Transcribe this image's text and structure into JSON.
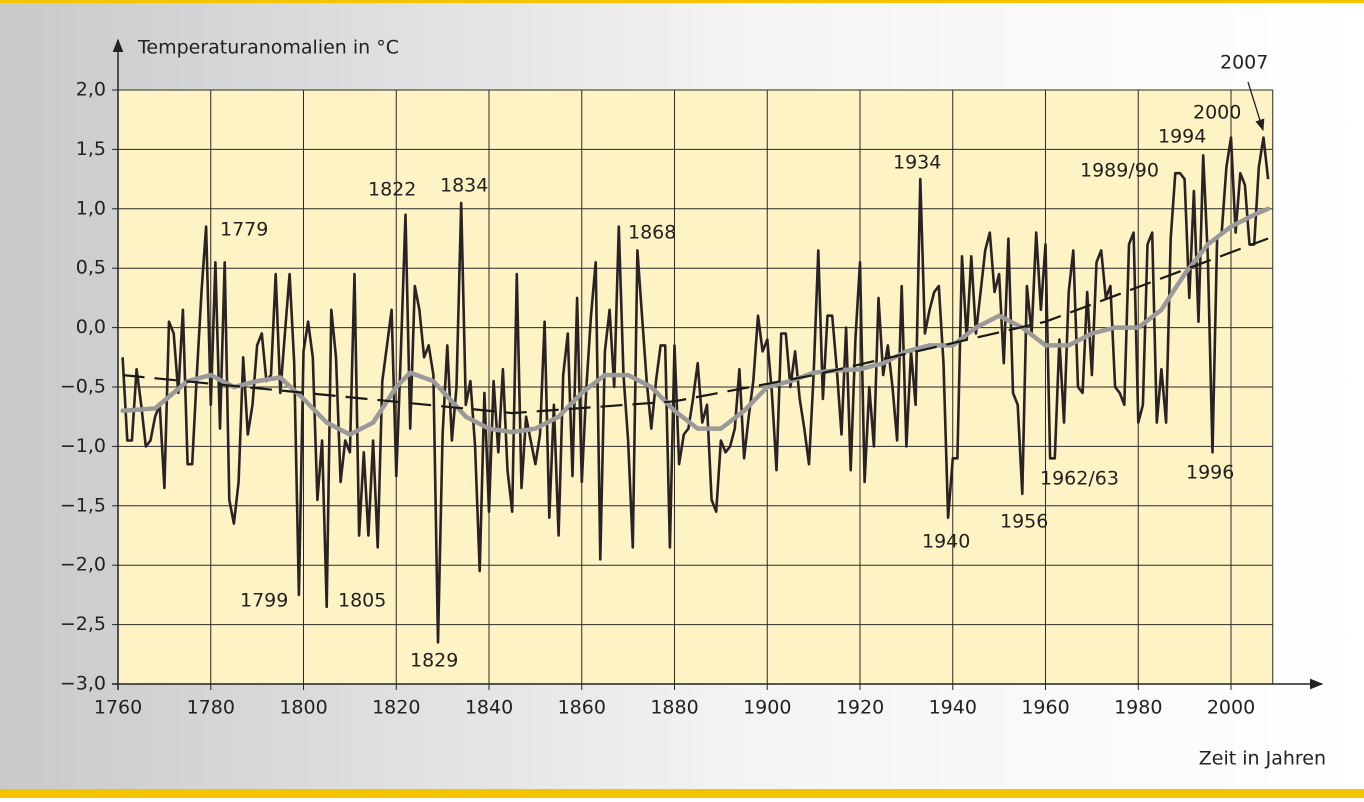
{
  "chart_data": {
    "type": "line",
    "ylabel": "Temperaturanomalien in °C",
    "xlabel": "Zeit in Jahren",
    "xlim": [
      1760,
      2009
    ],
    "ylim": [
      -3,
      2
    ],
    "xticks": [
      1760,
      1780,
      1800,
      1820,
      1840,
      1860,
      1880,
      1900,
      1920,
      1940,
      1960,
      1980,
      2000
    ],
    "yticks": [
      {
        "value": 2,
        "label": "2,0"
      },
      {
        "value": 1.5,
        "label": "1,5"
      },
      {
        "value": 1,
        "label": "1,0"
      },
      {
        "value": 0.5,
        "label": "0,5"
      },
      {
        "value": 0,
        "label": "0,0"
      },
      {
        "value": -0.5,
        "label": "−0,5"
      },
      {
        "value": -1,
        "label": "−1,0"
      },
      {
        "value": -1.5,
        "label": "−1,5"
      },
      {
        "value": -2,
        "label": "−2,0"
      },
      {
        "value": -2.5,
        "label": "−2,5"
      },
      {
        "value": -3,
        "label": "−3,0"
      }
    ],
    "grid": true,
    "background": "#fdf3c4",
    "series": [
      {
        "color": "#2a2326",
        "style": "solid",
        "x": [
          1761,
          1762,
          1763,
          1764,
          1765,
          1766,
          1767,
          1768,
          1769,
          1770,
          1771,
          1772,
          1773,
          1774,
          1775,
          1776,
          1777,
          1778,
          1779,
          1780,
          1781,
          1782,
          1783,
          1784,
          1785,
          1786,
          1787,
          1788,
          1789,
          1790,
          1791,
          1792,
          1793,
          1794,
          1795,
          1796,
          1797,
          1798,
          1799,
          1800,
          1801,
          1802,
          1803,
          1804,
          1805,
          1806,
          1807,
          1808,
          1809,
          1810,
          1811,
          1812,
          1813,
          1814,
          1815,
          1816,
          1817,
          1818,
          1819,
          1820,
          1821,
          1822,
          1823,
          1824,
          1825,
          1826,
          1827,
          1828,
          1829,
          1830,
          1831,
          1832,
          1833,
          1834,
          1835,
          1836,
          1837,
          1838,
          1839,
          1840,
          1841,
          1842,
          1843,
          1844,
          1845,
          1846,
          1847,
          1848,
          1849,
          1850,
          1851,
          1852,
          1853,
          1854,
          1855,
          1856,
          1857,
          1858,
          1859,
          1860,
          1861,
          1862,
          1863,
          1864,
          1865,
          1866,
          1867,
          1868,
          1869,
          1870,
          1871,
          1872,
          1873,
          1874,
          1875,
          1876,
          1877,
          1878,
          1879,
          1880,
          1881,
          1882,
          1883,
          1884,
          1885,
          1886,
          1887,
          1888,
          1889,
          1890,
          1891,
          1892,
          1893,
          1894,
          1895,
          1896,
          1897,
          1898,
          1899,
          1900,
          1901,
          1902,
          1903,
          1904,
          1905,
          1906,
          1907,
          1908,
          1909,
          1910,
          1911,
          1912,
          1913,
          1914,
          1915,
          1916,
          1917,
          1918,
          1919,
          1920,
          1921,
          1922,
          1923,
          1924,
          1925,
          1926,
          1927,
          1928,
          1929,
          1930,
          1931,
          1932,
          1933,
          1934,
          1935,
          1936,
          1937,
          1938,
          1939,
          1940,
          1941,
          1942,
          1943,
          1944,
          1945,
          1946,
          1947,
          1948,
          1949,
          1950,
          1951,
          1952,
          1953,
          1954,
          1955,
          1956,
          1957,
          1958,
          1959,
          1960,
          1961,
          1962,
          1963,
          1964,
          1965,
          1966,
          1967,
          1968,
          1969,
          1970,
          1971,
          1972,
          1973,
          1974,
          1975,
          1976,
          1977,
          1978,
          1979,
          1980,
          1981,
          1982,
          1983,
          1984,
          1985,
          1986,
          1987,
          1988,
          1989,
          1990,
          1991,
          1992,
          1993,
          1994,
          1995,
          1996,
          1997,
          1998,
          1999,
          2000,
          2001,
          2002,
          2003,
          2004,
          2005,
          2006,
          2007,
          2008
        ],
        "values": [
          -0.25,
          -0.95,
          -0.95,
          -0.35,
          -0.65,
          -1.0,
          -0.95,
          -0.75,
          -0.65,
          -1.35,
          0.05,
          -0.05,
          -0.55,
          0.15,
          -1.15,
          -1.15,
          -0.4,
          0.3,
          0.85,
          -0.65,
          0.55,
          -0.85,
          0.55,
          -1.45,
          -1.65,
          -1.3,
          -0.25,
          -0.9,
          -0.65,
          -0.15,
          -0.05,
          -0.45,
          -0.4,
          0.45,
          -0.55,
          -0.05,
          0.45,
          -0.3,
          -2.25,
          -0.2,
          0.05,
          -0.25,
          -1.45,
          -0.95,
          -2.35,
          0.15,
          -0.25,
          -1.3,
          -0.95,
          -1.05,
          0.45,
          -1.75,
          -1.05,
          -1.75,
          -0.95,
          -1.85,
          -0.45,
          -0.15,
          0.15,
          -1.25,
          -0.2,
          0.95,
          -0.85,
          0.35,
          0.15,
          -0.25,
          -0.15,
          -0.4,
          -2.65,
          -0.9,
          -0.15,
          -0.95,
          -0.5,
          1.05,
          -0.65,
          -0.45,
          -1.0,
          -2.05,
          -0.55,
          -1.55,
          -0.45,
          -1.05,
          -0.35,
          -1.2,
          -1.55,
          0.45,
          -1.35,
          -0.75,
          -0.95,
          -1.15,
          -0.9,
          0.05,
          -1.6,
          -0.65,
          -1.75,
          -0.4,
          -0.05,
          -1.25,
          0.25,
          -1.3,
          -0.5,
          0.1,
          0.55,
          -1.95,
          -0.2,
          0.15,
          -0.5,
          0.85,
          -0.4,
          -0.95,
          -1.85,
          0.65,
          0.1,
          -0.45,
          -0.85,
          -0.45,
          -0.15,
          -0.15,
          -1.85,
          -0.15,
          -1.15,
          -0.9,
          -0.85,
          -0.6,
          -0.3,
          -0.8,
          -0.65,
          -1.45,
          -1.55,
          -0.95,
          -1.05,
          -1.0,
          -0.85,
          -0.35,
          -1.1,
          -0.75,
          -0.45,
          0.1,
          -0.2,
          -0.1,
          -0.55,
          -1.2,
          -0.05,
          -0.05,
          -0.5,
          -0.2,
          -0.6,
          -0.85,
          -1.15,
          -0.4,
          0.65,
          -0.6,
          0.1,
          0.1,
          -0.35,
          -0.9,
          0.0,
          -1.2,
          -0.1,
          0.55,
          -1.3,
          -0.5,
          -1.0,
          0.25,
          -0.4,
          -0.15,
          -0.5,
          -0.95,
          0.35,
          -1.0,
          -0.2,
          -0.65,
          1.25,
          -0.05,
          0.15,
          0.3,
          0.35,
          -0.3,
          -1.6,
          -1.1,
          -1.1,
          0.6,
          -0.1,
          0.6,
          -0.05,
          0.3,
          0.65,
          0.8,
          0.3,
          0.45,
          -0.3,
          0.75,
          -0.55,
          -0.65,
          -1.4,
          0.35,
          -0.05,
          0.8,
          0.15,
          0.7,
          -1.1,
          -1.1,
          -0.1,
          -0.8,
          0.3,
          0.65,
          -0.5,
          -0.55,
          0.3,
          -0.4,
          0.55,
          0.65,
          0.25,
          0.35,
          -0.5,
          -0.55,
          -0.65,
          0.7,
          0.8,
          -0.8,
          -0.65,
          0.7,
          0.8,
          -0.8,
          -0.35,
          -0.8,
          0.75,
          1.3,
          1.3,
          1.25,
          0.25,
          1.15,
          0.05,
          1.45,
          0.6,
          -1.05,
          0.75,
          0.8,
          1.35,
          1.6,
          0.8,
          1.3,
          1.2,
          0.7,
          0.7,
          1.35,
          1.6,
          1.25
        ]
      },
      {
        "color": "#9a9a9a",
        "style": "smooth",
        "x": [
          1761,
          1768,
          1775,
          1780,
          1785,
          1790,
          1795,
          1800,
          1805,
          1810,
          1815,
          1820,
          1823,
          1828,
          1835,
          1840,
          1845,
          1850,
          1855,
          1860,
          1865,
          1870,
          1875,
          1880,
          1885,
          1890,
          1895,
          1900,
          1905,
          1910,
          1915,
          1920,
          1925,
          1930,
          1935,
          1940,
          1945,
          1950,
          1955,
          1960,
          1965,
          1970,
          1975,
          1980,
          1985,
          1990,
          1995,
          2000,
          2005,
          2008
        ],
        "values": [
          -0.7,
          -0.68,
          -0.45,
          -0.4,
          -0.5,
          -0.45,
          -0.42,
          -0.6,
          -0.8,
          -0.9,
          -0.8,
          -0.5,
          -0.38,
          -0.45,
          -0.75,
          -0.85,
          -0.88,
          -0.85,
          -0.75,
          -0.55,
          -0.4,
          -0.4,
          -0.5,
          -0.7,
          -0.85,
          -0.85,
          -0.7,
          -0.5,
          -0.45,
          -0.38,
          -0.36,
          -0.35,
          -0.3,
          -0.2,
          -0.15,
          -0.15,
          0.0,
          0.1,
          0.0,
          -0.15,
          -0.15,
          -0.05,
          0.0,
          0.0,
          0.15,
          0.45,
          0.7,
          0.85,
          0.95,
          1.0
        ]
      },
      {
        "color": "#1a1a1a",
        "style": "dashed",
        "x": [
          1761,
          1845,
          1880,
          1910,
          1960,
          2008
        ],
        "values": [
          -0.4,
          -0.72,
          -0.62,
          -0.4,
          0.05,
          0.75
        ]
      }
    ],
    "annotations": [
      "1779",
      "1799",
      "1805",
      "1822",
      "1829",
      "1834",
      "1868",
      "1934",
      "1940",
      "1956",
      "1962/63",
      "1989/90",
      "1994",
      "1996",
      "2000",
      "2007"
    ]
  }
}
